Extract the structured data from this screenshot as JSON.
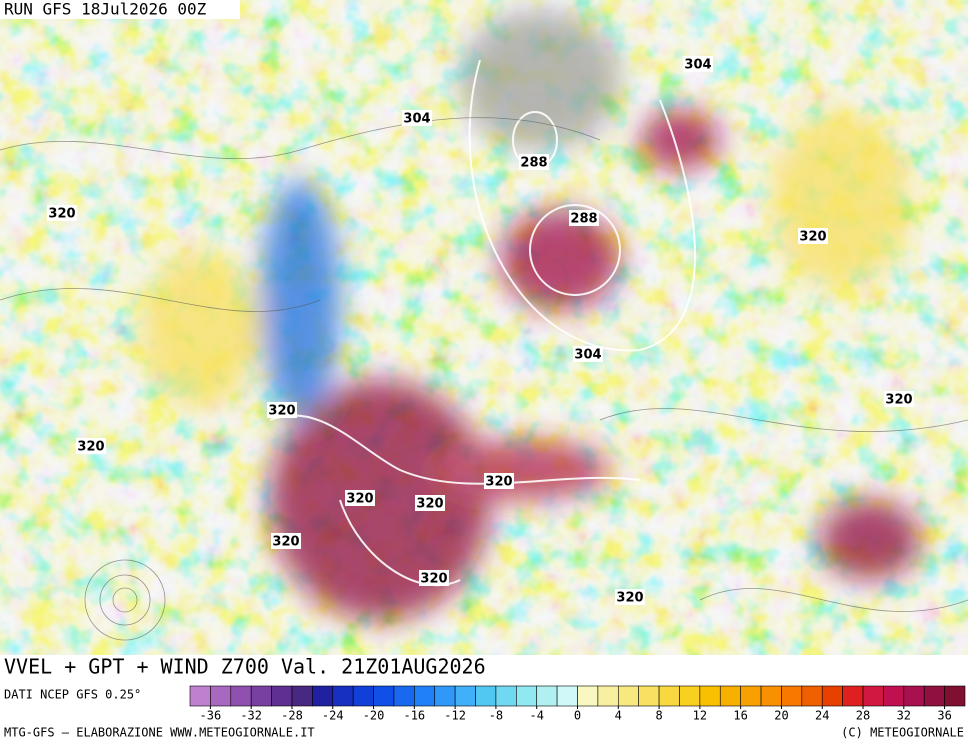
{
  "header": {
    "run": "RUN GFS 18Jul2026 00Z"
  },
  "contour_labels": [
    304,
    304,
    288,
    288,
    320,
    320,
    304,
    320,
    320,
    320,
    320,
    320,
    320,
    320,
    320,
    320
  ],
  "title": "VVEL + GPT + WIND Z700 Val. 21Z01AUG2026",
  "source": "DATI NCEP GFS 0.25°",
  "colorbar": {
    "lim": [
      -38,
      38
    ],
    "ticks": [
      -36,
      -32,
      -28,
      -24,
      -20,
      -16,
      -12,
      -8,
      -4,
      0,
      4,
      8,
      12,
      16,
      20,
      24,
      28,
      32,
      36
    ],
    "colors": [
      "#c080d0",
      "#a868c0",
      "#9050b0",
      "#7840a0",
      "#603090",
      "#482880",
      "#2020a0",
      "#1830c0",
      "#1040d8",
      "#1050e8",
      "#1868f0",
      "#2080f8",
      "#3098f8",
      "#40b0f8",
      "#50c8f0",
      "#70d8f0",
      "#90e8f0",
      "#b0f0f0",
      "#d0f8f8",
      "#f8f8c0",
      "#f8f0a0",
      "#f8e880",
      "#f8e060",
      "#f8d840",
      "#f8d020",
      "#f8c000",
      "#f8b000",
      "#f8a000",
      "#f89000",
      "#f87800",
      "#f06000",
      "#e84000",
      "#e02020",
      "#d01840",
      "#c01050",
      "#a81050",
      "#901040",
      "#801030"
    ]
  },
  "footer": {
    "left": "MTG-GFS — ELABORAZIONE WWW.METEOGIORNALE.IT",
    "right": "(C) METEOGIORNALE"
  }
}
